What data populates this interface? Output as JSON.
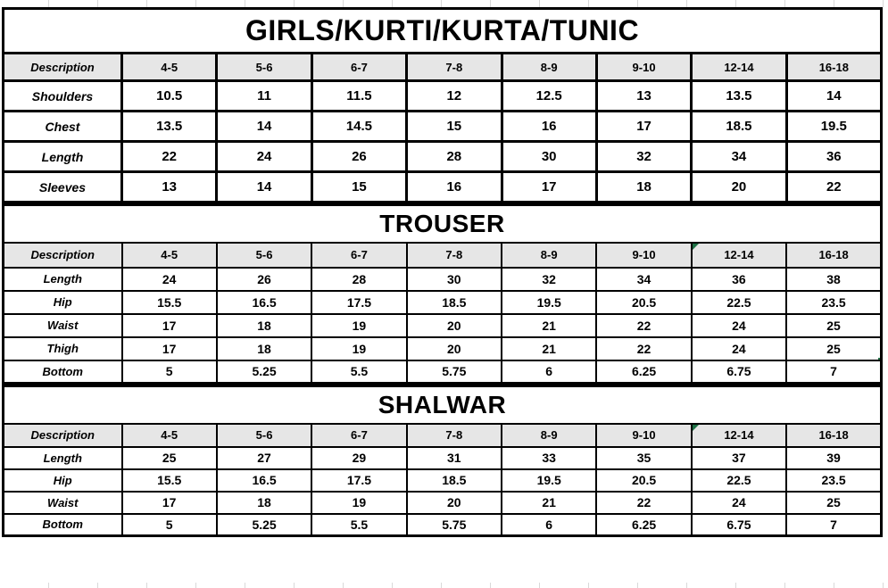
{
  "colors": {
    "border": "#000000",
    "header_bg": "#e6e6e6",
    "selection_green": "#217346",
    "flag_green": "#1e7145",
    "gridline": "#d9d9d9"
  },
  "tables": [
    {
      "name": "girls-kurti-kurta-tunic",
      "title": "GIRLS/KURTI/KURTA/TUNIC",
      "columns": [
        "Description",
        "4-5",
        "5-6",
        "6-7",
        "7-8",
        "8-9",
        "9-10",
        "12-14",
        "16-18"
      ],
      "rows": [
        {
          "label": "Shoulders",
          "values": [
            "10.5",
            "11",
            "11.5",
            "12",
            "12.5",
            "13",
            "13.5",
            "14"
          ]
        },
        {
          "label": "Chest",
          "values": [
            "13.5",
            "14",
            "14.5",
            "15",
            "16",
            "17",
            "18.5",
            "19.5"
          ]
        },
        {
          "label": "Length",
          "values": [
            "22",
            "24",
            "26",
            "28",
            "30",
            "32",
            "34",
            "36"
          ]
        },
        {
          "label": "Sleeves",
          "values": [
            "13",
            "14",
            "15",
            "16",
            "17",
            "18",
            "20",
            "22"
          ]
        }
      ]
    },
    {
      "name": "trouser",
      "title": "TROUSER",
      "columns": [
        "Description",
        "4-5",
        "5-6",
        "6-7",
        "7-8",
        "8-9",
        "9-10",
        "12-14",
        "16-18"
      ],
      "flag_col": 7,
      "selected": {
        "row": 3,
        "col": 7
      },
      "rows": [
        {
          "label": "Length",
          "values": [
            "24",
            "26",
            "28",
            "30",
            "32",
            "34",
            "36",
            "38"
          ]
        },
        {
          "label": "Hip",
          "values": [
            "15.5",
            "16.5",
            "17.5",
            "18.5",
            "19.5",
            "20.5",
            "22.5",
            "23.5"
          ]
        },
        {
          "label": "Waist",
          "values": [
            "17",
            "18",
            "19",
            "20",
            "21",
            "22",
            "24",
            "25"
          ]
        },
        {
          "label": "Thigh",
          "values": [
            "17",
            "18",
            "19",
            "20",
            "21",
            "22",
            "24",
            "25"
          ]
        },
        {
          "label": "Bottom",
          "values": [
            "5",
            "5.25",
            "5.5",
            "5.75",
            "6",
            "6.25",
            "6.75",
            "7"
          ]
        }
      ]
    },
    {
      "name": "shalwar",
      "title": "SHALWAR",
      "columns": [
        "Description",
        "4-5",
        "5-6",
        "6-7",
        "7-8",
        "8-9",
        "9-10",
        "12-14",
        "16-18"
      ],
      "flag_col": 7,
      "rows": [
        {
          "label": "Length",
          "values": [
            "25",
            "27",
            "29",
            "31",
            "33",
            "35",
            "37",
            "39"
          ]
        },
        {
          "label": "Hip",
          "values": [
            "15.5",
            "16.5",
            "17.5",
            "18.5",
            "19.5",
            "20.5",
            "22.5",
            "23.5"
          ]
        },
        {
          "label": "Waist",
          "values": [
            "17",
            "18",
            "19",
            "20",
            "21",
            "22",
            "24",
            "25"
          ]
        },
        {
          "label": "Bottom",
          "values": [
            "5",
            "5.25",
            "5.5",
            "5.75",
            "6",
            "6.25",
            "6.75",
            "7"
          ]
        }
      ]
    }
  ]
}
